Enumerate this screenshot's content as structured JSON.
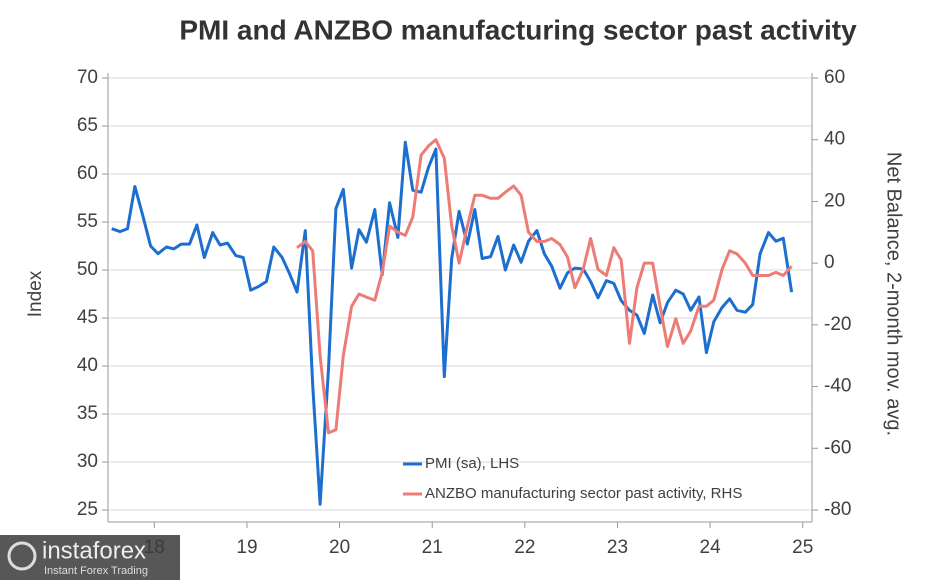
{
  "chart_data": {
    "type": "line",
    "title": "PMI and ANZBO manufacturing sector past activity",
    "y_label": "Index",
    "y2_label": "Net Balance, 2-month mov. avg.",
    "xlim": [
      2018.0,
      2025.6
    ],
    "xticks": [
      {
        "value": 2018.5,
        "label": "18"
      },
      {
        "value": 2019.5,
        "label": "19"
      },
      {
        "value": 2020.5,
        "label": "20"
      },
      {
        "value": 2021.5,
        "label": "21"
      },
      {
        "value": 2022.5,
        "label": "22"
      },
      {
        "value": 2023.5,
        "label": "23"
      },
      {
        "value": 2024.5,
        "label": "24"
      },
      {
        "value": 2025.5,
        "label": "25"
      }
    ],
    "ylim": [
      25,
      70
    ],
    "yticks": [
      25,
      30,
      35,
      40,
      45,
      50,
      55,
      60,
      65,
      70
    ],
    "y2lim": [
      -80,
      60
    ],
    "y2ticks": [
      -80,
      -60,
      -40,
      -20,
      0,
      20,
      40,
      60
    ],
    "grid": true,
    "series": [
      {
        "name": "PMI (sa), LHS",
        "color": "#1c6fcf",
        "axis": "y",
        "x": [
          2018.04,
          2018.13,
          2018.21,
          2018.29,
          2018.38,
          2018.46,
          2018.54,
          2018.63,
          2018.71,
          2018.79,
          2018.88,
          2018.96,
          2019.04,
          2019.13,
          2019.21,
          2019.29,
          2019.38,
          2019.46,
          2019.54,
          2019.63,
          2019.71,
          2019.79,
          2019.88,
          2019.96,
          2020.04,
          2020.13,
          2020.21,
          2020.29,
          2020.38,
          2020.46,
          2020.54,
          2020.63,
          2020.71,
          2020.79,
          2020.88,
          2020.96,
          2021.04,
          2021.13,
          2021.21,
          2021.29,
          2021.38,
          2021.46,
          2021.54,
          2021.63,
          2021.71,
          2021.79,
          2021.88,
          2021.96,
          2022.04,
          2022.13,
          2022.21,
          2022.29,
          2022.38,
          2022.46,
          2022.54,
          2022.63,
          2022.71,
          2022.79,
          2022.88,
          2022.96,
          2023.04,
          2023.13,
          2023.21,
          2023.29,
          2023.38,
          2023.46,
          2023.54,
          2023.63,
          2023.71,
          2023.79,
          2023.88,
          2023.96,
          2024.04,
          2024.13,
          2024.21,
          2024.29,
          2024.38,
          2024.46,
          2024.54,
          2024.63,
          2024.71,
          2024.79,
          2024.88,
          2024.96,
          2025.04,
          2025.13,
          2025.21,
          2025.29,
          2025.38
        ],
        "values": [
          54.3,
          54.0,
          54.3,
          58.7,
          55.5,
          52.5,
          51.7,
          52.4,
          52.2,
          52.7,
          52.7,
          54.7,
          51.3,
          53.9,
          52.6,
          52.8,
          51.5,
          51.3,
          47.9,
          48.3,
          48.8,
          52.4,
          51.3,
          49.6,
          47.7,
          54.1,
          38.0,
          25.6,
          39.7,
          56.4,
          58.4,
          50.2,
          54.2,
          52.9,
          56.3,
          49.5,
          57.0,
          53.4,
          63.3,
          58.3,
          58.1,
          60.7,
          62.6,
          38.9,
          51.2,
          56.1,
          52.7,
          56.3,
          51.2,
          51.4,
          53.5,
          50.0,
          52.6,
          50.8,
          53.0,
          54.1,
          51.7,
          50.4,
          48.1,
          49.7,
          50.2,
          50.1,
          48.8,
          47.1,
          48.9,
          48.6,
          46.8,
          45.8,
          45.3,
          43.4,
          47.4,
          44.5,
          46.6,
          47.9,
          47.5,
          45.8,
          47.2,
          41.4,
          44.6,
          46.1,
          47.0,
          45.8,
          45.6,
          46.4,
          51.7,
          53.9,
          53.0,
          53.3,
          47.7
        ]
      },
      {
        "name": "ANZBO manufacturing sector past activity, RHS",
        "color": "#ee7c76",
        "axis": "y2",
        "x": [
          2020.04,
          2020.13,
          2020.21,
          2020.29,
          2020.38,
          2020.46,
          2020.54,
          2020.63,
          2020.71,
          2020.79,
          2020.88,
          2020.96,
          2021.04,
          2021.13,
          2021.21,
          2021.29,
          2021.38,
          2021.46,
          2021.54,
          2021.63,
          2021.71,
          2021.79,
          2021.88,
          2021.96,
          2022.04,
          2022.13,
          2022.21,
          2022.29,
          2022.38,
          2022.46,
          2022.54,
          2022.63,
          2022.71,
          2022.79,
          2022.88,
          2022.96,
          2023.04,
          2023.13,
          2023.21,
          2023.29,
          2023.38,
          2023.46,
          2023.54,
          2023.63,
          2023.71,
          2023.79,
          2023.88,
          2023.96,
          2024.04,
          2024.13,
          2024.21,
          2024.29,
          2024.38,
          2024.46,
          2024.54,
          2024.63,
          2024.71,
          2024.79,
          2024.88,
          2024.96,
          2025.04,
          2025.13,
          2025.21,
          2025.29,
          2025.38
        ],
        "values": [
          5,
          7,
          4,
          -30,
          -55,
          -54,
          -30,
          -14,
          -10,
          -11,
          -12,
          -3,
          12,
          10,
          9,
          15,
          35,
          38,
          40,
          34,
          12,
          0,
          12,
          22,
          22,
          21,
          21,
          23,
          25,
          22,
          10,
          7,
          7,
          8,
          6,
          2,
          -8,
          -2,
          8,
          -2,
          -4,
          5,
          1,
          -26,
          -8,
          0,
          0,
          -14,
          -27,
          -18,
          -26,
          -22,
          -14,
          -14,
          -12,
          -2,
          4,
          3,
          0,
          -4,
          -4,
          -4,
          -3,
          -4,
          -1
        ]
      }
    ]
  },
  "watermark": {
    "brand": "instaforex",
    "tagline": "Instant Forex Trading"
  }
}
